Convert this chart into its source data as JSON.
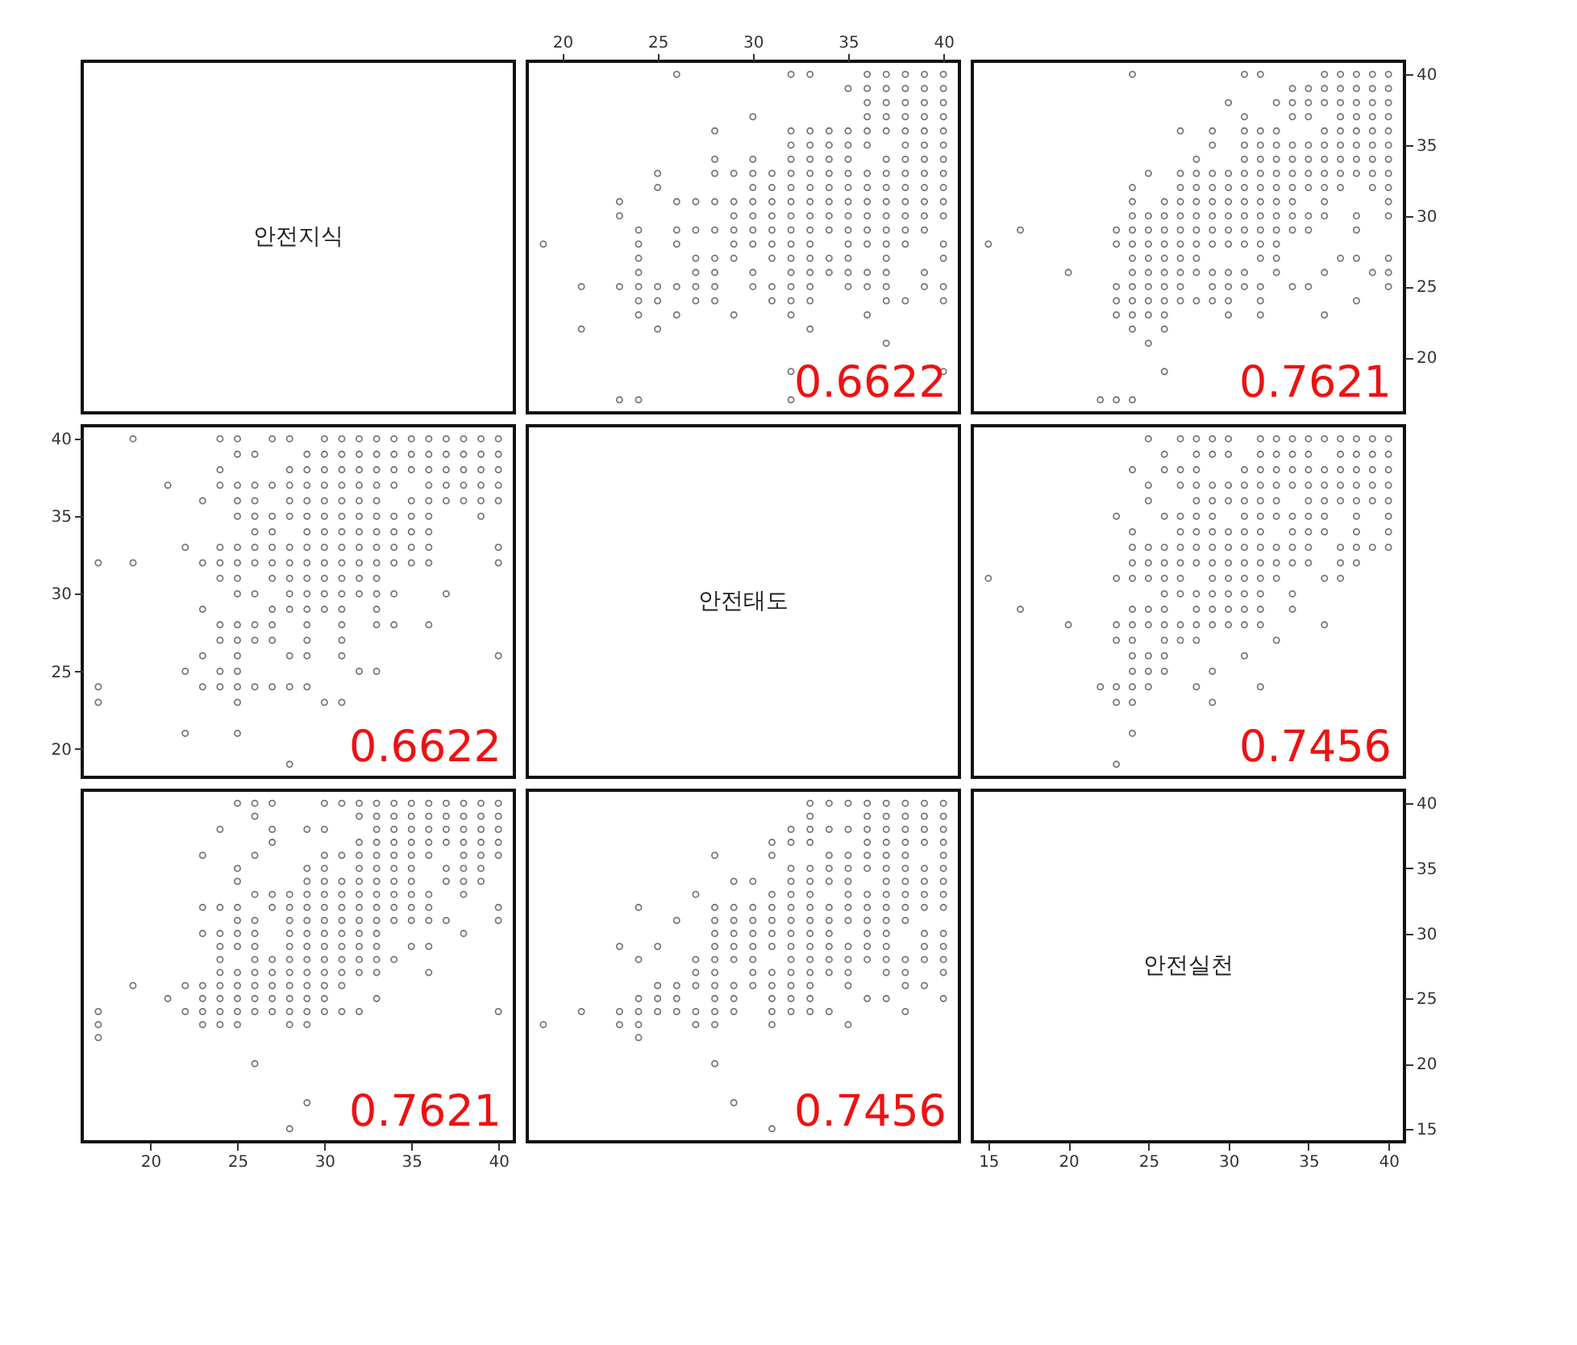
{
  "chart_data": [
    {
      "type": "scatter",
      "tick_labels": false,
      "title": "안전지식",
      "xlim": [
        16.08,
        40.92
      ],
      "ylim": [
        16.08,
        40.92
      ]
    },
    {
      "type": "scatter",
      "marker": "circle",
      "color": "#404040",
      "tick_labels": "x",
      "xlim": [
        18.16,
        40.84
      ],
      "ylim": [
        16.08,
        40.92
      ],
      "xticks": [
        20,
        25,
        30,
        35,
        40
      ],
      "annotations": [
        "0.6622"
      ],
      "x": [
        26,
        32,
        33,
        36,
        37,
        38,
        39,
        40,
        35,
        36,
        37,
        38,
        39,
        40,
        36,
        37,
        38,
        39,
        40,
        30,
        36,
        37,
        38,
        39,
        40,
        28,
        32,
        33,
        34,
        35,
        36,
        37,
        38,
        39,
        40,
        32,
        33,
        34,
        35,
        36,
        38,
        39,
        40,
        28,
        30,
        32,
        33,
        34,
        35,
        37,
        38,
        39,
        40,
        25,
        28,
        29,
        30,
        31,
        32,
        33,
        34,
        35,
        36,
        37,
        38,
        39,
        40,
        25,
        30,
        31,
        32,
        33,
        34,
        35,
        36,
        37,
        38,
        39,
        40,
        23,
        26,
        27,
        28,
        29,
        30,
        31,
        32,
        33,
        34,
        35,
        36,
        37,
        38,
        39,
        40,
        23,
        29,
        30,
        31,
        32,
        33,
        34,
        35,
        36,
        37,
        38,
        39,
        40,
        24,
        26,
        27,
        28,
        29,
        30,
        31,
        32,
        33,
        34,
        35,
        36,
        37,
        38,
        39,
        19,
        24,
        26,
        29,
        30,
        31,
        32,
        33,
        35,
        36,
        37,
        38,
        40,
        24,
        27,
        28,
        29,
        31,
        32,
        33,
        34,
        35,
        37,
        40,
        24,
        27,
        28,
        30,
        32,
        33,
        34,
        35,
        36,
        37,
        39,
        21,
        23,
        24,
        25,
        26,
        27,
        28,
        30,
        31,
        32,
        33,
        35,
        36,
        37,
        39,
        40,
        24,
        25,
        27,
        28,
        31,
        32,
        33,
        37,
        38,
        40,
        24,
        26,
        29,
        32,
        36,
        21,
        25,
        33,
        37,
        32,
        40,
        23,
        24,
        32
      ],
      "values": [
        40,
        40,
        40,
        40,
        40,
        40,
        40,
        40,
        39,
        39,
        39,
        39,
        39,
        39,
        38,
        38,
        38,
        38,
        38,
        37,
        37,
        37,
        37,
        37,
        37,
        36,
        36,
        36,
        36,
        36,
        36,
        36,
        36,
        36,
        36,
        35,
        35,
        35,
        35,
        35,
        35,
        35,
        35,
        34,
        34,
        34,
        34,
        34,
        34,
        34,
        34,
        34,
        34,
        33,
        33,
        33,
        33,
        33,
        33,
        33,
        33,
        33,
        33,
        33,
        33,
        33,
        33,
        32,
        32,
        32,
        32,
        32,
        32,
        32,
        32,
        32,
        32,
        32,
        32,
        31,
        31,
        31,
        31,
        31,
        31,
        31,
        31,
        31,
        31,
        31,
        31,
        31,
        31,
        31,
        31,
        30,
        30,
        30,
        30,
        30,
        30,
        30,
        30,
        30,
        30,
        30,
        30,
        30,
        29,
        29,
        29,
        29,
        29,
        29,
        29,
        29,
        29,
        29,
        29,
        29,
        29,
        29,
        29,
        28,
        28,
        28,
        28,
        28,
        28,
        28,
        28,
        28,
        28,
        28,
        28,
        28,
        27,
        27,
        27,
        27,
        27,
        27,
        27,
        27,
        27,
        27,
        27,
        26,
        26,
        26,
        26,
        26,
        26,
        26,
        26,
        26,
        26,
        26,
        25,
        25,
        25,
        25,
        25,
        25,
        25,
        25,
        25,
        25,
        25,
        25,
        25,
        25,
        25,
        25,
        24,
        24,
        24,
        24,
        24,
        24,
        24,
        24,
        24,
        24,
        23,
        23,
        23,
        23,
        23,
        22,
        22,
        22,
        21,
        19,
        19,
        17,
        17,
        17
      ]
    },
    {
      "type": "scatter",
      "marker": "circle",
      "color": "#404040",
      "tick_labels": "y",
      "xlim": [
        14,
        41
      ],
      "ylim": [
        16.08,
        40.92
      ],
      "yticks": [
        20,
        25,
        30,
        35,
        40
      ],
      "annotations": [
        "0.7621"
      ],
      "x": [
        24,
        31,
        32,
        36,
        37,
        38,
        39,
        40,
        34,
        35,
        36,
        37,
        38,
        39,
        40,
        30,
        33,
        34,
        35,
        36,
        37,
        38,
        39,
        40,
        31,
        34,
        35,
        37,
        38,
        39,
        40,
        27,
        29,
        31,
        32,
        33,
        36,
        37,
        38,
        39,
        40,
        29,
        31,
        32,
        33,
        34,
        35,
        36,
        37,
        38,
        39,
        40,
        28,
        31,
        32,
        33,
        34,
        35,
        36,
        37,
        38,
        39,
        40,
        25,
        27,
        28,
        29,
        30,
        31,
        32,
        33,
        34,
        35,
        36,
        37,
        38,
        39,
        40,
        24,
        27,
        28,
        29,
        30,
        31,
        32,
        33,
        34,
        35,
        36,
        37,
        39,
        40,
        24,
        26,
        27,
        28,
        29,
        30,
        31,
        32,
        33,
        34,
        36,
        40,
        24,
        25,
        26,
        27,
        28,
        29,
        30,
        31,
        32,
        33,
        34,
        35,
        36,
        38,
        40,
        17,
        23,
        24,
        25,
        26,
        27,
        28,
        29,
        30,
        31,
        32,
        33,
        34,
        35,
        38,
        15,
        23,
        24,
        25,
        26,
        27,
        28,
        29,
        30,
        31,
        32,
        33,
        24,
        25,
        26,
        27,
        28,
        32,
        33,
        37,
        38,
        40,
        20,
        24,
        25,
        26,
        27,
        28,
        29,
        30,
        31,
        33,
        36,
        39,
        40,
        23,
        24,
        25,
        26,
        27,
        29,
        30,
        31,
        32,
        34,
        35,
        40,
        23,
        24,
        25,
        26,
        27,
        28,
        29,
        30,
        32,
        38,
        23,
        24,
        25,
        26,
        30,
        32,
        36,
        24,
        26,
        25,
        26,
        22,
        23,
        24
      ],
      "values": [
        40,
        40,
        40,
        40,
        40,
        40,
        40,
        40,
        39,
        39,
        39,
        39,
        39,
        39,
        39,
        38,
        38,
        38,
        38,
        38,
        38,
        38,
        38,
        38,
        37,
        37,
        37,
        37,
        37,
        37,
        37,
        36,
        36,
        36,
        36,
        36,
        36,
        36,
        36,
        36,
        36,
        35,
        35,
        35,
        35,
        35,
        35,
        35,
        35,
        35,
        35,
        35,
        34,
        34,
        34,
        34,
        34,
        34,
        34,
        34,
        34,
        34,
        34,
        33,
        33,
        33,
        33,
        33,
        33,
        33,
        33,
        33,
        33,
        33,
        33,
        33,
        33,
        33,
        32,
        32,
        32,
        32,
        32,
        32,
        32,
        32,
        32,
        32,
        32,
        32,
        32,
        32,
        31,
        31,
        31,
        31,
        31,
        31,
        31,
        31,
        31,
        31,
        31,
        31,
        30,
        30,
        30,
        30,
        30,
        30,
        30,
        30,
        30,
        30,
        30,
        30,
        30,
        30,
        30,
        29,
        29,
        29,
        29,
        29,
        29,
        29,
        29,
        29,
        29,
        29,
        29,
        29,
        29,
        29,
        28,
        28,
        28,
        28,
        28,
        28,
        28,
        28,
        28,
        28,
        28,
        28,
        27,
        27,
        27,
        27,
        27,
        27,
        27,
        27,
        27,
        27,
        26,
        26,
        26,
        26,
        26,
        26,
        26,
        26,
        26,
        26,
        26,
        26,
        26,
        25,
        25,
        25,
        25,
        25,
        25,
        25,
        25,
        25,
        25,
        25,
        25,
        24,
        24,
        24,
        24,
        24,
        24,
        24,
        24,
        24,
        24,
        23,
        23,
        23,
        23,
        23,
        23,
        23,
        22,
        22,
        21,
        19,
        17,
        17,
        17
      ]
    },
    {
      "type": "scatter",
      "marker": "circle",
      "color": "#404040",
      "tick_labels": "y",
      "xlim": [
        16.08,
        40.92
      ],
      "ylim": [
        18.16,
        40.84
      ],
      "yticks": [
        20,
        25,
        30,
        35,
        40
      ],
      "annotations": [
        "0.6622"
      ],
      "x": [
        40,
        40,
        40,
        40,
        40,
        40,
        40,
        40,
        39,
        39,
        39,
        39,
        39,
        39,
        38,
        38,
        38,
        38,
        38,
        37,
        37,
        37,
        37,
        37,
        37,
        36,
        36,
        36,
        36,
        36,
        36,
        36,
        36,
        36,
        36,
        35,
        35,
        35,
        35,
        35,
        35,
        35,
        35,
        34,
        34,
        34,
        34,
        34,
        34,
        34,
        34,
        34,
        34,
        33,
        33,
        33,
        33,
        33,
        33,
        33,
        33,
        33,
        33,
        33,
        33,
        33,
        33,
        32,
        32,
        32,
        32,
        32,
        32,
        32,
        32,
        32,
        32,
        32,
        32,
        31,
        31,
        31,
        31,
        31,
        31,
        31,
        31,
        31,
        31,
        31,
        31,
        31,
        31,
        31,
        31,
        30,
        30,
        30,
        30,
        30,
        30,
        30,
        30,
        30,
        30,
        30,
        30,
        30,
        29,
        29,
        29,
        29,
        29,
        29,
        29,
        29,
        29,
        29,
        29,
        29,
        29,
        29,
        29,
        28,
        28,
        28,
        28,
        28,
        28,
        28,
        28,
        28,
        28,
        28,
        28,
        28,
        27,
        27,
        27,
        27,
        27,
        27,
        27,
        27,
        27,
        27,
        27,
        26,
        26,
        26,
        26,
        26,
        26,
        26,
        26,
        26,
        26,
        26,
        25,
        25,
        25,
        25,
        25,
        25,
        25,
        25,
        25,
        25,
        25,
        25,
        25,
        25,
        25,
        25,
        24,
        24,
        24,
        24,
        24,
        24,
        24,
        24,
        24,
        24,
        23,
        23,
        23,
        23,
        23,
        22,
        22,
        22,
        21,
        19,
        19,
        17,
        17,
        17
      ],
      "values": [
        26,
        32,
        33,
        36,
        37,
        38,
        39,
        40,
        35,
        36,
        37,
        38,
        39,
        40,
        36,
        37,
        38,
        39,
        40,
        30,
        36,
        37,
        38,
        39,
        40,
        28,
        32,
        33,
        34,
        35,
        36,
        37,
        38,
        39,
        40,
        32,
        33,
        34,
        35,
        36,
        38,
        39,
        40,
        28,
        30,
        32,
        33,
        34,
        35,
        37,
        38,
        39,
        40,
        25,
        28,
        29,
        30,
        31,
        32,
        33,
        34,
        35,
        36,
        37,
        38,
        39,
        40,
        25,
        30,
        31,
        32,
        33,
        34,
        35,
        36,
        37,
        38,
        39,
        40,
        23,
        26,
        27,
        28,
        29,
        30,
        31,
        32,
        33,
        34,
        35,
        36,
        37,
        38,
        39,
        40,
        23,
        29,
        30,
        31,
        32,
        33,
        34,
        35,
        36,
        37,
        38,
        39,
        40,
        24,
        26,
        27,
        28,
        29,
        30,
        31,
        32,
        33,
        34,
        35,
        36,
        37,
        38,
        39,
        19,
        24,
        26,
        29,
        30,
        31,
        32,
        33,
        35,
        36,
        37,
        38,
        40,
        24,
        27,
        28,
        29,
        31,
        32,
        33,
        34,
        35,
        37,
        40,
        24,
        27,
        28,
        30,
        32,
        33,
        34,
        35,
        36,
        37,
        39,
        21,
        23,
        24,
        25,
        26,
        27,
        28,
        30,
        31,
        32,
        33,
        35,
        36,
        37,
        39,
        40,
        24,
        25,
        27,
        28,
        31,
        32,
        33,
        37,
        38,
        40,
        24,
        26,
        29,
        32,
        36,
        21,
        25,
        33,
        37,
        32,
        40,
        23,
        24,
        32
      ]
    },
    {
      "type": "scatter",
      "tick_labels": false,
      "title": "안전태도",
      "xlim": [
        18.16,
        40.84
      ],
      "ylim": [
        18.16,
        40.84
      ]
    },
    {
      "type": "scatter",
      "marker": "circle",
      "color": "#404040",
      "tick_labels": false,
      "xlim": [
        14,
        41
      ],
      "ylim": [
        18.16,
        40.84
      ],
      "annotations": [
        "0.7456"
      ],
      "x": [
        25,
        27,
        28,
        29,
        30,
        32,
        33,
        34,
        35,
        36,
        37,
        38,
        39,
        40,
        26,
        28,
        29,
        30,
        32,
        33,
        34,
        35,
        37,
        38,
        39,
        40,
        24,
        26,
        27,
        28,
        31,
        32,
        33,
        34,
        35,
        36,
        37,
        38,
        39,
        40,
        25,
        27,
        28,
        29,
        30,
        31,
        32,
        33,
        34,
        35,
        36,
        37,
        38,
        39,
        40,
        25,
        28,
        29,
        30,
        31,
        32,
        33,
        35,
        36,
        37,
        38,
        39,
        40,
        23,
        26,
        27,
        28,
        29,
        31,
        32,
        33,
        34,
        35,
        36,
        38,
        40,
        24,
        27,
        28,
        29,
        30,
        31,
        32,
        34,
        35,
        36,
        38,
        40,
        24,
        25,
        26,
        27,
        28,
        29,
        30,
        31,
        32,
        33,
        34,
        35,
        37,
        38,
        39,
        40,
        24,
        25,
        26,
        27,
        28,
        29,
        30,
        31,
        32,
        33,
        34,
        35,
        37,
        38,
        15,
        23,
        24,
        25,
        26,
        27,
        29,
        30,
        31,
        32,
        33,
        36,
        37,
        26,
        27,
        28,
        29,
        30,
        31,
        32,
        34,
        17,
        24,
        25,
        26,
        28,
        29,
        30,
        31,
        32,
        34,
        20,
        23,
        24,
        25,
        26,
        27,
        28,
        29,
        30,
        31,
        32,
        36,
        23,
        24,
        26,
        27,
        28,
        33,
        24,
        25,
        26,
        31,
        24,
        25,
        26,
        29,
        22,
        23,
        24,
        25,
        28,
        32,
        23,
        24,
        29,
        24,
        23
      ],
      "values": [
        40,
        40,
        40,
        40,
        40,
        40,
        40,
        40,
        40,
        40,
        40,
        40,
        40,
        40,
        39,
        39,
        39,
        39,
        39,
        39,
        39,
        39,
        39,
        39,
        39,
        39,
        38,
        38,
        38,
        38,
        38,
        38,
        38,
        38,
        38,
        38,
        38,
        38,
        38,
        38,
        37,
        37,
        37,
        37,
        37,
        37,
        37,
        37,
        37,
        37,
        37,
        37,
        37,
        37,
        37,
        36,
        36,
        36,
        36,
        36,
        36,
        36,
        36,
        36,
        36,
        36,
        36,
        36,
        35,
        35,
        35,
        35,
        35,
        35,
        35,
        35,
        35,
        35,
        35,
        35,
        35,
        34,
        34,
        34,
        34,
        34,
        34,
        34,
        34,
        34,
        34,
        34,
        34,
        33,
        33,
        33,
        33,
        33,
        33,
        33,
        33,
        33,
        33,
        33,
        33,
        33,
        33,
        33,
        33,
        32,
        32,
        32,
        32,
        32,
        32,
        32,
        32,
        32,
        32,
        32,
        32,
        32,
        32,
        31,
        31,
        31,
        31,
        31,
        31,
        31,
        31,
        31,
        31,
        31,
        31,
        31,
        30,
        30,
        30,
        30,
        30,
        30,
        30,
        30,
        29,
        29,
        29,
        29,
        29,
        29,
        29,
        29,
        29,
        29,
        28,
        28,
        28,
        28,
        28,
        28,
        28,
        28,
        28,
        28,
        28,
        28,
        27,
        27,
        27,
        27,
        27,
        27,
        26,
        26,
        26,
        26,
        25,
        25,
        25,
        25,
        24,
        24,
        24,
        24,
        24,
        24,
        23,
        23,
        23,
        21,
        19
      ]
    },
    {
      "type": "scatter",
      "marker": "circle",
      "color": "#404040",
      "tick_labels": "x",
      "xlim": [
        16.08,
        40.92
      ],
      "ylim": [
        14,
        41
      ],
      "xticks": [
        20,
        25,
        30,
        35,
        40
      ],
      "annotations": [
        "0.7621"
      ],
      "x": [
        40,
        40,
        40,
        40,
        40,
        40,
        40,
        40,
        39,
        39,
        39,
        39,
        39,
        39,
        39,
        38,
        38,
        38,
        38,
        38,
        38,
        38,
        38,
        38,
        37,
        37,
        37,
        37,
        37,
        37,
        37,
        36,
        36,
        36,
        36,
        36,
        36,
        36,
        36,
        36,
        36,
        35,
        35,
        35,
        35,
        35,
        35,
        35,
        35,
        35,
        35,
        35,
        34,
        34,
        34,
        34,
        34,
        34,
        34,
        34,
        34,
        34,
        34,
        33,
        33,
        33,
        33,
        33,
        33,
        33,
        33,
        33,
        33,
        33,
        33,
        33,
        33,
        33,
        32,
        32,
        32,
        32,
        32,
        32,
        32,
        32,
        32,
        32,
        32,
        32,
        32,
        32,
        31,
        31,
        31,
        31,
        31,
        31,
        31,
        31,
        31,
        31,
        31,
        31,
        30,
        30,
        30,
        30,
        30,
        30,
        30,
        30,
        30,
        30,
        30,
        30,
        30,
        30,
        30,
        29,
        29,
        29,
        29,
        29,
        29,
        29,
        29,
        29,
        29,
        29,
        29,
        29,
        29,
        29,
        28,
        28,
        28,
        28,
        28,
        28,
        28,
        28,
        28,
        28,
        28,
        28,
        27,
        27,
        27,
        27,
        27,
        27,
        27,
        27,
        27,
        27,
        26,
        26,
        26,
        26,
        26,
        26,
        26,
        26,
        26,
        26,
        26,
        26,
        26,
        25,
        25,
        25,
        25,
        25,
        25,
        25,
        25,
        25,
        25,
        25,
        25,
        24,
        24,
        24,
        24,
        24,
        24,
        24,
        24,
        24,
        24,
        23,
        23,
        23,
        23,
        23,
        23,
        23,
        22,
        22,
        21,
        19,
        17,
        17,
        17
      ],
      "values": [
        24,
        31,
        32,
        36,
        37,
        38,
        39,
        40,
        34,
        35,
        36,
        37,
        38,
        39,
        40,
        30,
        33,
        34,
        35,
        36,
        37,
        38,
        39,
        40,
        31,
        34,
        35,
        37,
        38,
        39,
        40,
        27,
        29,
        31,
        32,
        33,
        36,
        37,
        38,
        39,
        40,
        29,
        31,
        32,
        33,
        34,
        35,
        36,
        37,
        38,
        39,
        40,
        28,
        31,
        32,
        33,
        34,
        35,
        36,
        37,
        38,
        39,
        40,
        25,
        27,
        28,
        29,
        30,
        31,
        32,
        33,
        34,
        35,
        36,
        37,
        38,
        39,
        40,
        24,
        27,
        28,
        29,
        30,
        31,
        32,
        33,
        34,
        35,
        36,
        37,
        39,
        40,
        24,
        26,
        27,
        28,
        29,
        30,
        31,
        32,
        33,
        34,
        36,
        40,
        24,
        25,
        26,
        27,
        28,
        29,
        30,
        31,
        32,
        33,
        34,
        35,
        36,
        38,
        40,
        17,
        23,
        24,
        25,
        26,
        27,
        28,
        29,
        30,
        31,
        32,
        33,
        34,
        35,
        38,
        15,
        23,
        24,
        25,
        26,
        27,
        28,
        29,
        30,
        31,
        32,
        33,
        24,
        25,
        26,
        27,
        28,
        32,
        33,
        37,
        38,
        40,
        20,
        24,
        25,
        26,
        27,
        28,
        29,
        30,
        31,
        33,
        36,
        39,
        40,
        23,
        24,
        25,
        26,
        27,
        29,
        30,
        31,
        32,
        34,
        35,
        40,
        23,
        24,
        25,
        26,
        27,
        28,
        29,
        30,
        32,
        38,
        23,
        24,
        25,
        26,
        30,
        32,
        36,
        24,
        26,
        25,
        26,
        22,
        23,
        24
      ]
    },
    {
      "type": "scatter",
      "marker": "circle",
      "color": "#404040",
      "tick_labels": false,
      "xlim": [
        18.16,
        40.84
      ],
      "ylim": [
        14,
        41
      ],
      "annotations": [
        "0.7456"
      ],
      "x": [
        40,
        40,
        40,
        40,
        40,
        40,
        40,
        40,
        40,
        40,
        40,
        40,
        40,
        40,
        39,
        39,
        39,
        39,
        39,
        39,
        39,
        39,
        39,
        39,
        39,
        39,
        38,
        38,
        38,
        38,
        38,
        38,
        38,
        38,
        38,
        38,
        38,
        38,
        38,
        38,
        37,
        37,
        37,
        37,
        37,
        37,
        37,
        37,
        37,
        37,
        37,
        37,
        37,
        37,
        37,
        36,
        36,
        36,
        36,
        36,
        36,
        36,
        36,
        36,
        36,
        36,
        36,
        36,
        35,
        35,
        35,
        35,
        35,
        35,
        35,
        35,
        35,
        35,
        35,
        35,
        35,
        34,
        34,
        34,
        34,
        34,
        34,
        34,
        34,
        34,
        34,
        34,
        34,
        33,
        33,
        33,
        33,
        33,
        33,
        33,
        33,
        33,
        33,
        33,
        33,
        33,
        33,
        33,
        33,
        32,
        32,
        32,
        32,
        32,
        32,
        32,
        32,
        32,
        32,
        32,
        32,
        32,
        32,
        31,
        31,
        31,
        31,
        31,
        31,
        31,
        31,
        31,
        31,
        31,
        31,
        31,
        30,
        30,
        30,
        30,
        30,
        30,
        30,
        30,
        29,
        29,
        29,
        29,
        29,
        29,
        29,
        29,
        29,
        29,
        28,
        28,
        28,
        28,
        28,
        28,
        28,
        28,
        28,
        28,
        28,
        28,
        27,
        27,
        27,
        27,
        27,
        27,
        26,
        26,
        26,
        26,
        25,
        25,
        25,
        25,
        24,
        24,
        24,
        24,
        24,
        24,
        23,
        23,
        23,
        21,
        19
      ],
      "values": [
        25,
        27,
        28,
        29,
        30,
        32,
        33,
        34,
        35,
        36,
        37,
        38,
        39,
        40,
        26,
        28,
        29,
        30,
        32,
        33,
        34,
        35,
        37,
        38,
        39,
        40,
        24,
        26,
        27,
        28,
        31,
        32,
        33,
        34,
        35,
        36,
        37,
        38,
        39,
        40,
        25,
        27,
        28,
        29,
        30,
        31,
        32,
        33,
        34,
        35,
        36,
        37,
        38,
        39,
        40,
        25,
        28,
        29,
        30,
        31,
        32,
        33,
        35,
        36,
        37,
        38,
        39,
        40,
        23,
        26,
        27,
        28,
        29,
        31,
        32,
        33,
        34,
        35,
        36,
        38,
        40,
        24,
        27,
        28,
        29,
        30,
        31,
        32,
        34,
        35,
        36,
        38,
        40,
        24,
        25,
        26,
        27,
        28,
        29,
        30,
        31,
        32,
        33,
        34,
        35,
        37,
        38,
        39,
        40,
        24,
        25,
        26,
        27,
        28,
        29,
        30,
        31,
        32,
        33,
        34,
        35,
        37,
        38,
        15,
        23,
        24,
        25,
        26,
        27,
        29,
        30,
        31,
        32,
        33,
        36,
        37,
        26,
        27,
        28,
        29,
        30,
        31,
        32,
        34,
        17,
        24,
        25,
        26,
        28,
        29,
        30,
        31,
        32,
        34,
        20,
        23,
        24,
        25,
        26,
        27,
        28,
        29,
        30,
        31,
        32,
        36,
        23,
        24,
        26,
        27,
        28,
        33,
        24,
        25,
        26,
        31,
        24,
        25,
        26,
        29,
        22,
        23,
        24,
        25,
        28,
        32,
        23,
        24,
        29,
        24,
        23
      ]
    },
    {
      "type": "scatter",
      "title": "안전실천",
      "xlim": [
        14,
        41
      ],
      "ylim": [
        14,
        41
      ],
      "xticks": [
        15,
        20,
        25,
        30,
        35,
        40
      ],
      "yticks": [
        15,
        20,
        25,
        30,
        35,
        40
      ]
    }
  ]
}
